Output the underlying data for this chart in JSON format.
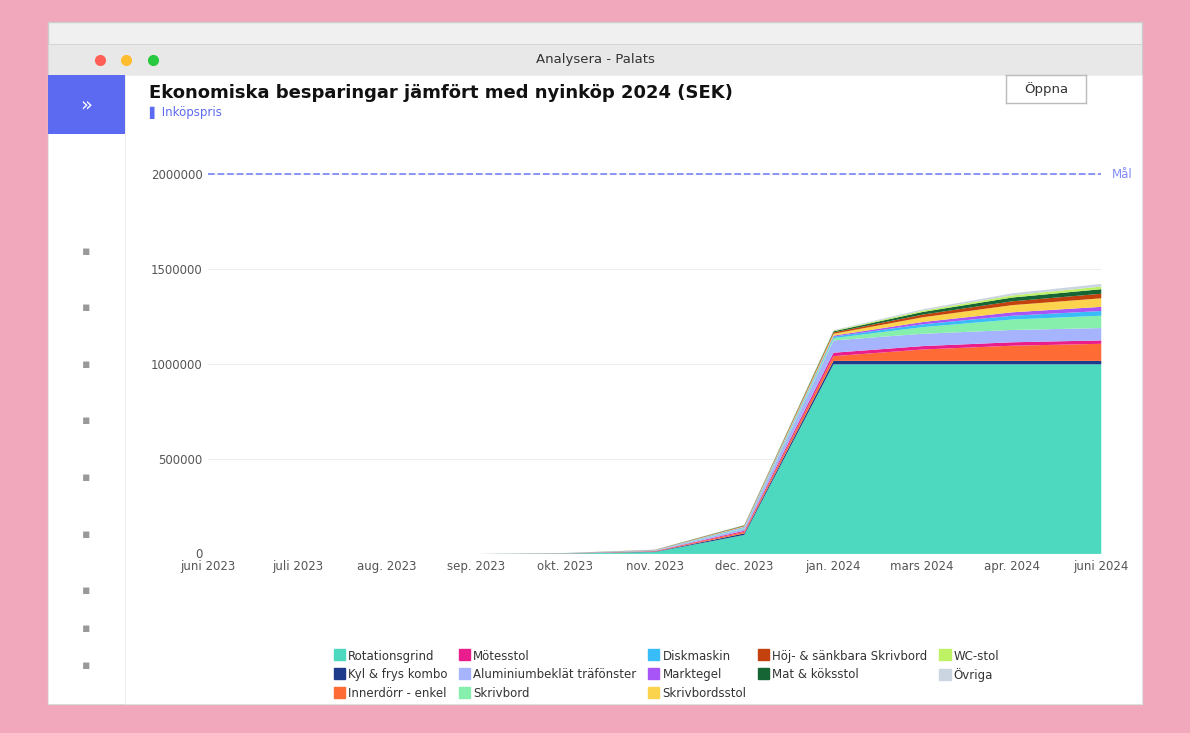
{
  "title": "Ekonomiska besparingar jämfört med nyinköp 2024 (SEK)",
  "subtitle": "Inköpspris",
  "window_title": "Analysera - Palats",
  "goal_label": "Mål",
  "goal_value": 2000000,
  "open_button": "Öppna",
  "x_labels": [
    "juni 2023",
    "juli 2023",
    "aug. 2023",
    "sep. 2023",
    "okt. 2023",
    "nov. 2023",
    "dec. 2023",
    "jan. 2024",
    "mars 2024",
    "apr. 2024",
    "juni 2024"
  ],
  "x_positions": [
    0,
    1,
    2,
    3,
    4,
    5,
    6,
    7,
    8,
    9,
    10
  ],
  "series": [
    {
      "name": "Rotationsgrind",
      "color": "#4DD9C0",
      "values": [
        0,
        0,
        0,
        0,
        2000,
        10000,
        100000,
        1000000,
        1000000,
        1000000,
        1000000
      ]
    },
    {
      "name": "Kyl & frys kombo",
      "color": "#1E3A8A",
      "values": [
        0,
        0,
        0,
        0,
        500,
        2000,
        8000,
        18000,
        18000,
        18000,
        18000
      ]
    },
    {
      "name": "Innerdörr - enkel",
      "color": "#FF6B35",
      "values": [
        0,
        0,
        0,
        0,
        500,
        2000,
        8000,
        25000,
        60000,
        80000,
        90000
      ]
    },
    {
      "name": "Mötesstol",
      "color": "#E91E8C",
      "values": [
        0,
        0,
        0,
        0,
        300,
        1500,
        6000,
        18000,
        18000,
        18000,
        18000
      ]
    },
    {
      "name": "Aluminiumbeklät träfönster",
      "color": "#A5B4FC",
      "values": [
        0,
        0,
        0,
        0,
        500,
        2000,
        12000,
        65000,
        65000,
        65000,
        65000
      ]
    },
    {
      "name": "Skrivbord",
      "color": "#86EFAC",
      "values": [
        0,
        0,
        0,
        0,
        200,
        1000,
        4000,
        12000,
        35000,
        55000,
        65000
      ]
    },
    {
      "name": "Diskmaskin",
      "color": "#38BDF8",
      "values": [
        0,
        0,
        0,
        0,
        200,
        800,
        3000,
        8000,
        15000,
        20000,
        25000
      ]
    },
    {
      "name": "Marktegel",
      "color": "#A855F7",
      "values": [
        0,
        0,
        0,
        0,
        100,
        500,
        2000,
        5000,
        12000,
        18000,
        22000
      ]
    },
    {
      "name": "Skrivbordsstol",
      "color": "#FCD34D",
      "values": [
        0,
        0,
        0,
        0,
        200,
        800,
        3000,
        10000,
        25000,
        38000,
        45000
      ]
    },
    {
      "name": "Höj- & sänkbara Skrivbord",
      "color": "#C2410C",
      "values": [
        0,
        0,
        0,
        0,
        150,
        600,
        2500,
        7000,
        14000,
        20000,
        24000
      ]
    },
    {
      "name": "Mat & köksstol",
      "color": "#166534",
      "values": [
        0,
        0,
        0,
        0,
        150,
        600,
        2500,
        6000,
        14000,
        20000,
        24000
      ]
    },
    {
      "name": "WC-stol",
      "color": "#BEF264",
      "values": [
        0,
        0,
        0,
        0,
        50,
        200,
        1000,
        3000,
        7000,
        11000,
        14000
      ]
    },
    {
      "name": "Övriga",
      "color": "#CBD5E1",
      "values": [
        0,
        0,
        0,
        0,
        50,
        200,
        1000,
        3000,
        7000,
        11000,
        14000
      ]
    }
  ],
  "ylim": [
    0,
    2300000
  ],
  "yticks": [
    0,
    500000,
    1000000,
    1500000,
    2000000
  ],
  "ytick_labels": [
    "0",
    "500000",
    "1000000",
    "1500000",
    "2000000"
  ],
  "goal_line_color": "#818CF8",
  "goal_line_style": "--",
  "bg_color": "#FFFFFF",
  "outer_bg_color": "#F2A8BC",
  "window_bg": "#ECECEC",
  "sidebar_color": "#5B6AF0",
  "title_bar_color": "#E8E8E8",
  "title_fontsize": 13,
  "axis_fontsize": 8.5,
  "legend_fontsize": 8.5
}
